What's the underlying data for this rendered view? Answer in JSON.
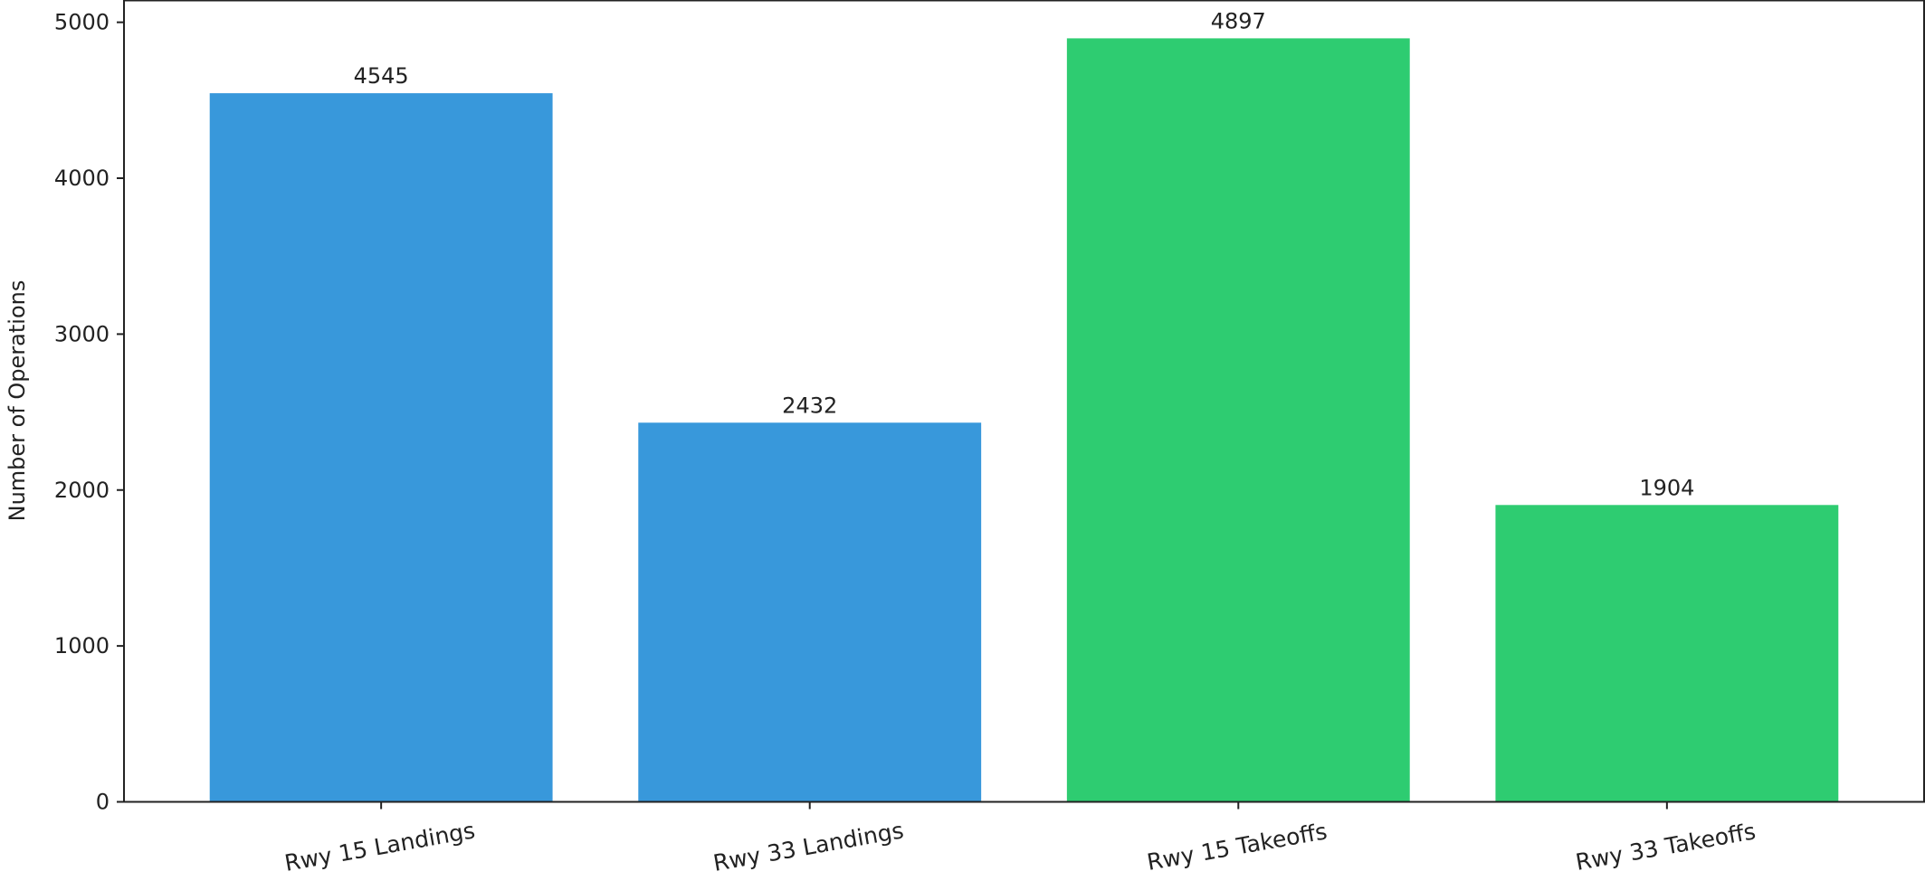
{
  "chart_data": {
    "type": "bar",
    "title": "",
    "xlabel": "",
    "ylabel": "Number of Operations",
    "categories": [
      "Rwy 15 Landings",
      "Rwy 33 Landings",
      "Rwy 15 Takeoffs",
      "Rwy 33 Takeoffs"
    ],
    "values": [
      4545,
      2432,
      4897,
      1904
    ],
    "value_labels": [
      "4545",
      "2432",
      "4897",
      "1904"
    ],
    "bar_colors": [
      "#3898DB",
      "#3898DB",
      "#2ECC71",
      "#2ECC71"
    ],
    "ylim": [
      0,
      5140
    ],
    "yticks": [
      0,
      1000,
      2000,
      3000,
      4000,
      5000
    ],
    "ytick_labels": [
      "0",
      "1000",
      "2000",
      "3000",
      "4000",
      "5000"
    ],
    "grid": false,
    "legend": "none"
  }
}
